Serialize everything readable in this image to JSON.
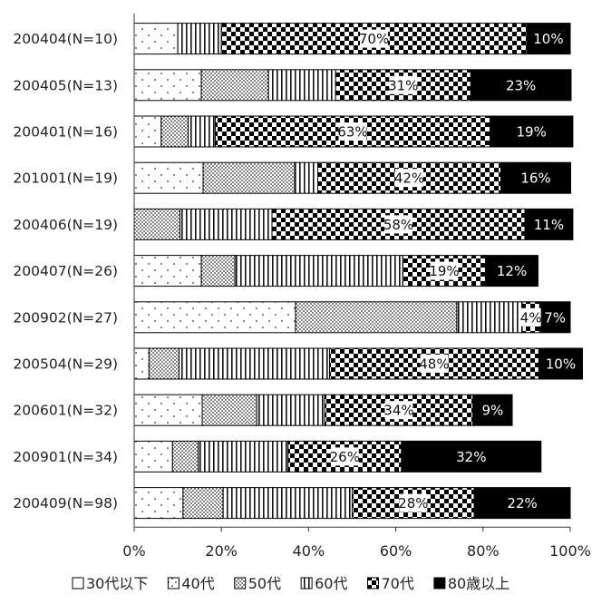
{
  "chart_data": {
    "type": "bar",
    "orientation": "horizontal",
    "stacked": "percent",
    "title": "",
    "xlabel": "",
    "ylabel": "",
    "xlim": [
      0,
      100
    ],
    "x_ticks": [
      "0%",
      "20%",
      "40%",
      "60%",
      "80%",
      "100%"
    ],
    "grid": false,
    "legend_position": "bottom",
    "categories": [
      "200404(N=10)",
      "200405(N=13)",
      "200401(N=16)",
      "201001(N=19)",
      "200406(N=19)",
      "200407(N=26)",
      "200902(N=27)",
      "200504(N=29)",
      "200601(N=32)",
      "200901(N=34)",
      "200409(N=98)"
    ],
    "series": [
      {
        "name": "30代以下",
        "values": [
          0,
          0,
          0,
          0,
          0,
          0,
          0,
          0,
          0,
          0,
          0
        ]
      },
      {
        "name": "40代",
        "values": [
          10,
          15.4,
          6.2,
          15.8,
          0,
          15.4,
          37,
          3.4,
          15.6,
          8.8,
          11.2
        ]
      },
      {
        "name": "50代",
        "values": [
          0,
          15.4,
          6.2,
          21,
          10.5,
          7.7,
          37,
          6.9,
          12.5,
          5.9,
          9.2
        ]
      },
      {
        "name": "60代",
        "values": [
          10,
          15.4,
          6.2,
          5.3,
          21.1,
          38.5,
          15,
          34.5,
          15.6,
          20.6,
          29.6
        ]
      },
      {
        "name": "70代",
        "values": [
          70,
          31,
          63,
          42,
          58,
          19,
          4,
          48,
          34,
          26,
          28
        ]
      },
      {
        "name": "80歳以上",
        "values": [
          10,
          23,
          19,
          16,
          11,
          12,
          7,
          10,
          9,
          32,
          22
        ]
      }
    ],
    "data_labels": [
      [
        "70%",
        "10%"
      ],
      [
        "31%",
        "23%"
      ],
      [
        "63%",
        "19%"
      ],
      [
        "42%",
        "16%"
      ],
      [
        "58%",
        "11%"
      ],
      [
        "19%",
        "12%"
      ],
      [
        "4%",
        "7%"
      ],
      [
        "48%",
        "10%"
      ],
      [
        "34%",
        "9%"
      ],
      [
        "26%",
        "32%"
      ],
      [
        "28%",
        "22%"
      ]
    ]
  },
  "segment_patterns": [
    [
      "blank",
      "dots-sparse",
      "dots-mid",
      "dots-dense",
      "checker",
      "solid"
    ]
  ],
  "colors": {
    "bar_stroke": "#000000",
    "solid": "#000000",
    "background": "#ffffff"
  }
}
